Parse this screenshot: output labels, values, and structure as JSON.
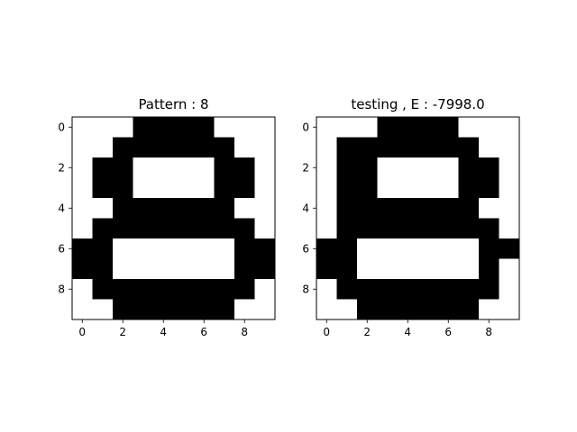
{
  "chart_data": [
    {
      "type": "heatmap",
      "title": "Pattern : 8",
      "colormap": {
        "0": "#ffffff",
        "1": "#000000"
      },
      "xticks": [
        0,
        2,
        4,
        6,
        8
      ],
      "yticks": [
        0,
        2,
        4,
        6,
        8
      ],
      "xlim": [
        -0.5,
        9.5
      ],
      "ylim": [
        9.5,
        -0.5
      ],
      "grid": [
        [
          0,
          0,
          0,
          1,
          1,
          1,
          1,
          0,
          0,
          0
        ],
        [
          0,
          0,
          1,
          1,
          1,
          1,
          1,
          1,
          0,
          0
        ],
        [
          0,
          1,
          1,
          0,
          0,
          0,
          0,
          1,
          1,
          0
        ],
        [
          0,
          1,
          1,
          0,
          0,
          0,
          0,
          1,
          1,
          0
        ],
        [
          0,
          0,
          1,
          1,
          1,
          1,
          1,
          1,
          0,
          0
        ],
        [
          0,
          1,
          1,
          1,
          1,
          1,
          1,
          1,
          1,
          0
        ],
        [
          1,
          1,
          0,
          0,
          0,
          0,
          0,
          0,
          1,
          1
        ],
        [
          1,
          1,
          0,
          0,
          0,
          0,
          0,
          0,
          1,
          1
        ],
        [
          0,
          1,
          1,
          1,
          1,
          1,
          1,
          1,
          1,
          0
        ],
        [
          0,
          0,
          1,
          1,
          1,
          1,
          1,
          1,
          0,
          0
        ]
      ]
    },
    {
      "type": "heatmap",
      "title": "testing , E : -7998.0",
      "colormap": {
        "0": "#ffffff",
        "1": "#000000"
      },
      "xticks": [
        0,
        2,
        4,
        6,
        8
      ],
      "yticks": [
        0,
        2,
        4,
        6,
        8
      ],
      "xlim": [
        -0.5,
        9.5
      ],
      "ylim": [
        9.5,
        -0.5
      ],
      "grid": [
        [
          0,
          0,
          0,
          1,
          1,
          1,
          1,
          0,
          0,
          0
        ],
        [
          0,
          1,
          1,
          1,
          1,
          1,
          1,
          1,
          0,
          0
        ],
        [
          0,
          1,
          1,
          0,
          0,
          0,
          0,
          1,
          1,
          0
        ],
        [
          0,
          1,
          1,
          0,
          0,
          0,
          0,
          1,
          1,
          0
        ],
        [
          0,
          1,
          1,
          1,
          1,
          1,
          1,
          1,
          0,
          0
        ],
        [
          0,
          1,
          1,
          1,
          1,
          1,
          1,
          1,
          1,
          0
        ],
        [
          1,
          1,
          0,
          0,
          0,
          0,
          0,
          0,
          1,
          1
        ],
        [
          1,
          1,
          0,
          0,
          0,
          0,
          0,
          0,
          1,
          0
        ],
        [
          0,
          1,
          1,
          1,
          1,
          1,
          1,
          1,
          1,
          0
        ],
        [
          0,
          0,
          1,
          1,
          1,
          1,
          1,
          1,
          0,
          0
        ]
      ]
    }
  ]
}
